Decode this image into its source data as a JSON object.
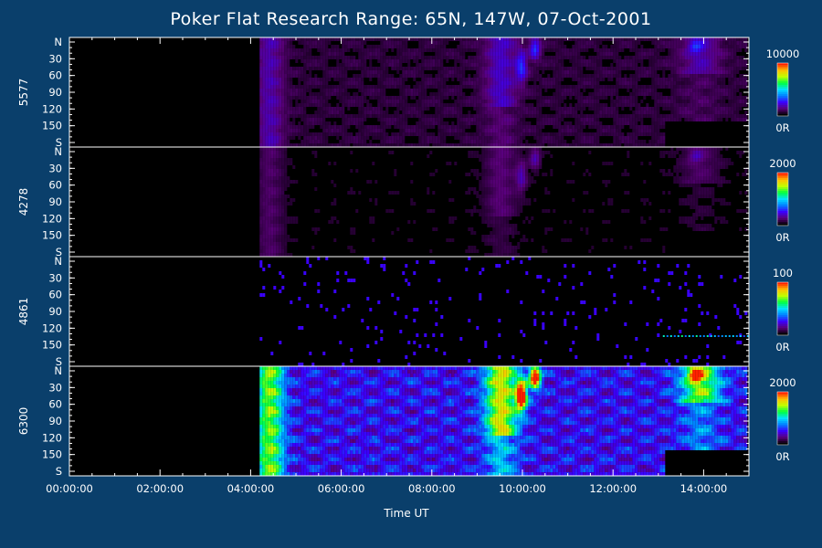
{
  "chart_data": {
    "type": "heatmap",
    "title": "Poker Flat Research Range: 65N, 147W, 07-Oct-2001",
    "xlabel": "Time UT",
    "x_ticks": [
      "00:00:00",
      "02:00:00",
      "04:00:00",
      "06:00:00",
      "08:00:00",
      "10:00:00",
      "12:00:00",
      "14:00:00"
    ],
    "x_range_hours": [
      0,
      15
    ],
    "data_start_hour": 4.2,
    "data_end_hour": 15,
    "y_ticks": [
      "N",
      "30",
      "60",
      "90",
      "120",
      "150",
      "S"
    ],
    "y_range_deg": [
      0,
      180
    ],
    "panels": [
      {
        "wavelength": "5577",
        "scale_max": "10000",
        "scale_min": "0R",
        "intensity_peak_fraction": 0.25
      },
      {
        "wavelength": "4278",
        "scale_max": "2000",
        "scale_min": "0R",
        "intensity_peak_fraction": 0.15
      },
      {
        "wavelength": "4861",
        "scale_max": "100",
        "scale_min": "0R",
        "intensity_peak_fraction": 0.2
      },
      {
        "wavelength": "6300",
        "scale_max": "2000",
        "scale_min": "0R",
        "intensity_peak_fraction": 1.0
      }
    ],
    "colormap": [
      "#000000",
      "#5a007a",
      "#3a00ff",
      "#0080ff",
      "#00e0ff",
      "#00ff40",
      "#c0ff00",
      "#ffc000",
      "#ff2000"
    ]
  }
}
